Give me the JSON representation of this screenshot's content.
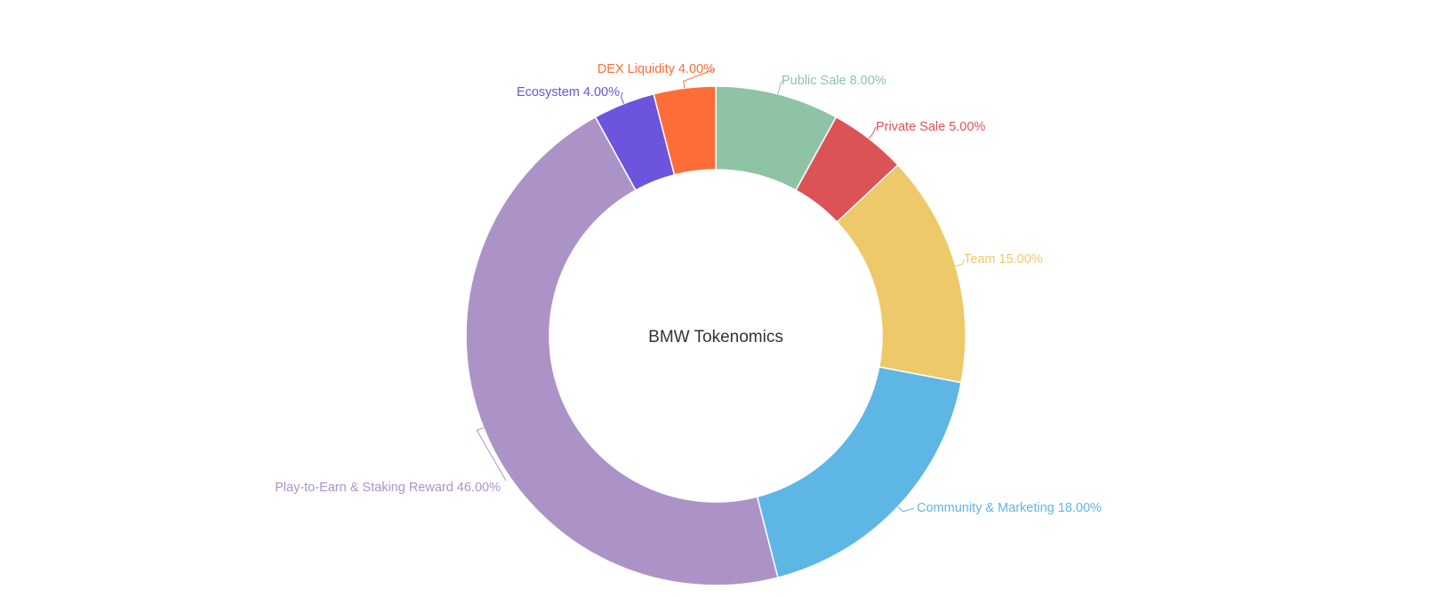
{
  "chart_data": {
    "type": "pie",
    "variant": "donut",
    "title": "BMW Tokenomics",
    "slices": [
      {
        "name": "Public Sale",
        "value": 8.0,
        "label": "8.00%",
        "color": "#8fc3a6"
      },
      {
        "name": "Private Sale",
        "value": 5.0,
        "label": "5.00%",
        "color": "#dc5356"
      },
      {
        "name": "Team",
        "value": 15.0,
        "label": "15.00%",
        "color": "#eec96a"
      },
      {
        "name": "Community & Marketing",
        "value": 18.0,
        "label": "18.00%",
        "color": "#5eb6e4"
      },
      {
        "name": "Play-to-Earn & Staking Reward",
        "value": 46.0,
        "label": "46.00%",
        "color": "#ac93c7"
      },
      {
        "name": "Ecosystem",
        "value": 4.0,
        "label": "4.00%",
        "color": "#6c54dc"
      },
      {
        "name": "DEX Liquidity",
        "value": 4.0,
        "label": "4.00%",
        "color": "#fe6d37"
      }
    ],
    "legend": "none",
    "labels": "outside-with-leader-lines"
  }
}
